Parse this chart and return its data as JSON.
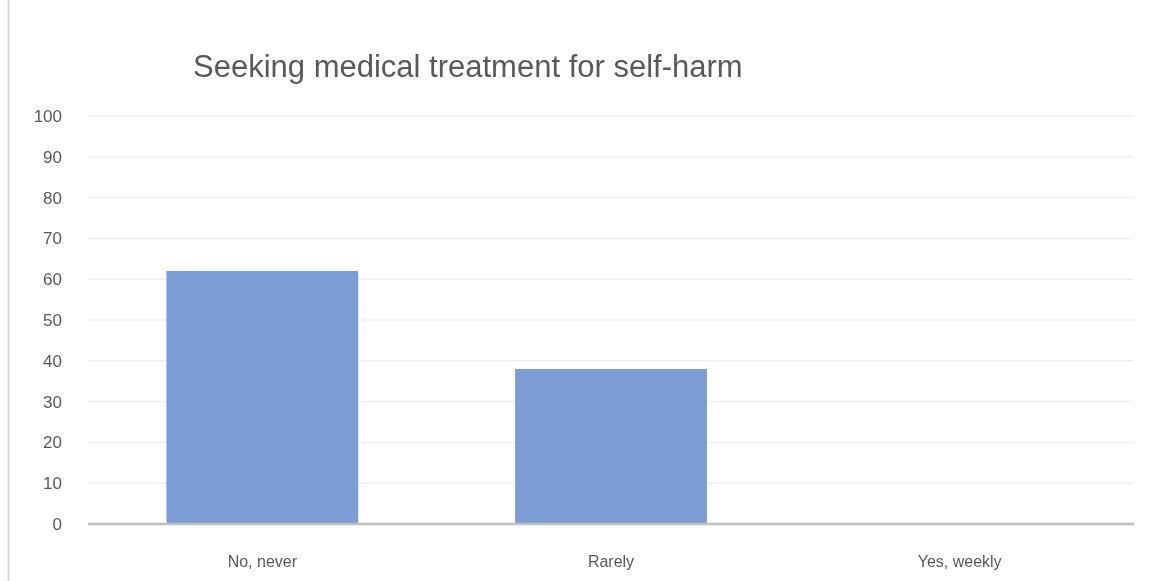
{
  "chart_data": {
    "type": "bar",
    "title": "Seeking medical treatment for self-harm",
    "categories": [
      "No, never",
      "Rarely",
      "Yes, weekly"
    ],
    "values": [
      62,
      38,
      0
    ],
    "color": "#7b9cd4",
    "ylim": [
      0,
      100
    ],
    "yticks": [
      0,
      10,
      20,
      30,
      40,
      50,
      60,
      70,
      80,
      90,
      100
    ],
    "grid": "y"
  }
}
